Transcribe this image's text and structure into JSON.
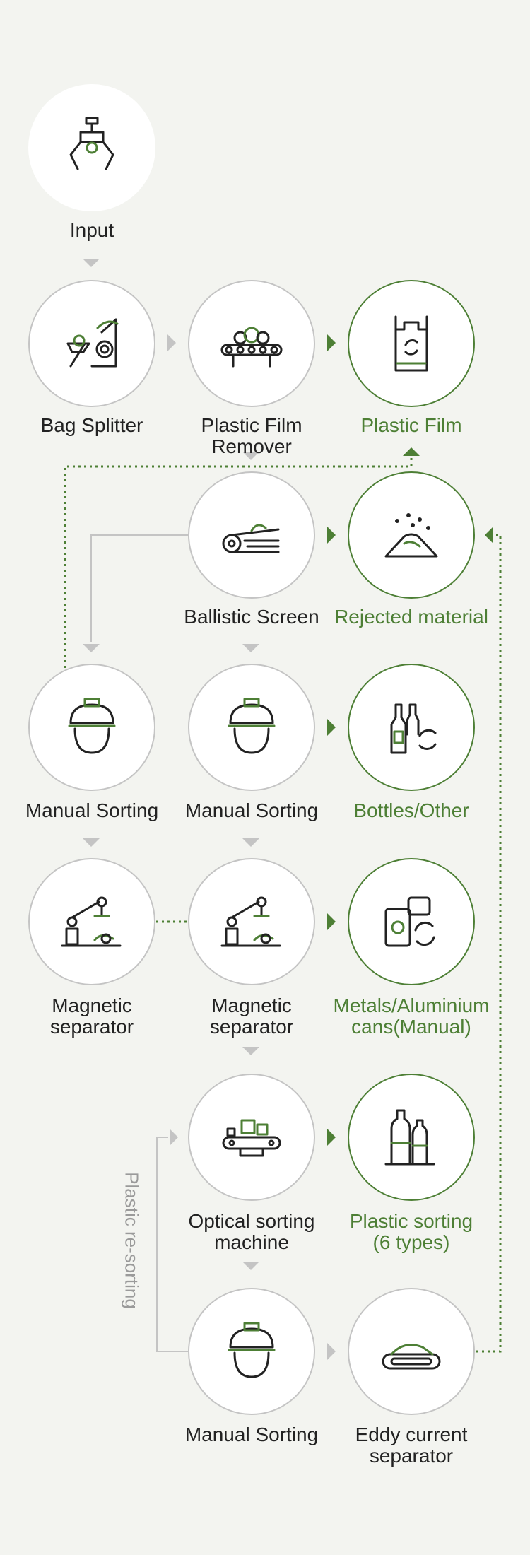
{
  "colors": {
    "accent": "#4d7f35",
    "neutral": "#c4c4c4",
    "text": "#222222",
    "background": "#f3f4f0"
  },
  "nodes": {
    "input": {
      "label": "Input",
      "icon": "claw-grabber-icon"
    },
    "bag_splitter": {
      "label": "Bag Splitter",
      "icon": "bag-splitter-icon"
    },
    "film_remover": {
      "label": "Plastic Film Remover",
      "icon": "film-remover-icon"
    },
    "plastic_film": {
      "label": "Plastic Film",
      "icon": "plastic-bag-recycle-icon"
    },
    "ballistic": {
      "label": "Ballistic Screen",
      "icon": "ballistic-screen-icon"
    },
    "rejected": {
      "label": "Rejected material",
      "icon": "rejected-pile-icon"
    },
    "manual1": {
      "label": "Manual Sorting",
      "icon": "worker-helmet-icon"
    },
    "manual2": {
      "label": "Manual Sorting",
      "icon": "worker-helmet-icon"
    },
    "bottles": {
      "label": "Bottles/Other",
      "icon": "bottles-recycle-icon"
    },
    "mag1": {
      "label_1": "Magnetic",
      "label_2": "separator",
      "icon": "robot-arm-icon"
    },
    "mag2": {
      "label_1": "Magnetic",
      "label_2": "separator",
      "icon": "robot-arm-icon"
    },
    "metals": {
      "label_1": "Metals/Aluminium",
      "label_2": "cans(Manual)",
      "icon": "cans-recycle-icon"
    },
    "optical": {
      "label_1": "Optical sorting",
      "label_2": "machine",
      "icon": "optical-sorter-icon"
    },
    "plastic_sort": {
      "label_1": "Plastic sorting",
      "label_2": "(6 types)",
      "icon": "plastic-bottles-icon"
    },
    "manual3": {
      "label": "Manual Sorting",
      "icon": "worker-helmet-icon"
    },
    "eddy": {
      "label_1": "Eddy current",
      "label_2": "separator",
      "icon": "eddy-conveyor-icon"
    }
  },
  "side_label": "Plastic re-sorting"
}
